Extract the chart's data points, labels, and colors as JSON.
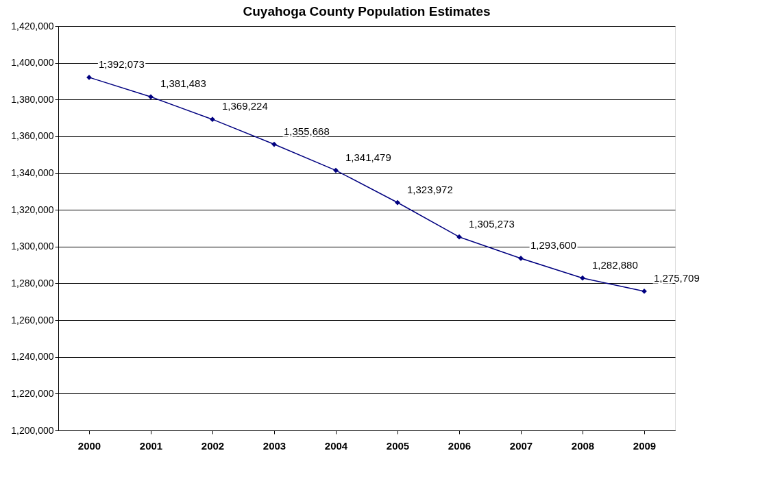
{
  "chart_data": {
    "type": "line",
    "title": "Cuyahoga County Population Estimates",
    "categories": [
      "2000",
      "2001",
      "2002",
      "2003",
      "2004",
      "2005",
      "2006",
      "2007",
      "2008",
      "2009"
    ],
    "series": [
      {
        "color": "#000080",
        "values": [
          1392073,
          1381483,
          1369224,
          1355668,
          1341479,
          1323972,
          1305273,
          1293600,
          1282880,
          1275709
        ],
        "value_labels": [
          "1,392,073",
          "1,381,483",
          "1,369,224",
          "1,355,668",
          "1,341,479",
          "1,323,972",
          "1,305,273",
          "1,293,600",
          "1,282,880",
          "1,275,709"
        ]
      }
    ],
    "ylim": [
      1200000,
      1420000
    ],
    "yticks": [
      {
        "value": 1200000,
        "label": "1,200,000"
      },
      {
        "value": 1220000,
        "label": "1,220,000"
      },
      {
        "value": 1240000,
        "label": "1,240,000"
      },
      {
        "value": 1260000,
        "label": "1,260,000"
      },
      {
        "value": 1280000,
        "label": "1,280,000"
      },
      {
        "value": 1300000,
        "label": "1,300,000"
      },
      {
        "value": 1320000,
        "label": "1,320,000"
      },
      {
        "value": 1340000,
        "label": "1,340,000"
      },
      {
        "value": 1360000,
        "label": "1,360,000"
      },
      {
        "value": 1380000,
        "label": "1,380,000"
      },
      {
        "value": 1400000,
        "label": "1,400,000"
      },
      {
        "value": 1420000,
        "label": "1,420,000"
      }
    ],
    "grid": "y",
    "marker": "diamond",
    "line_style": "solid"
  }
}
